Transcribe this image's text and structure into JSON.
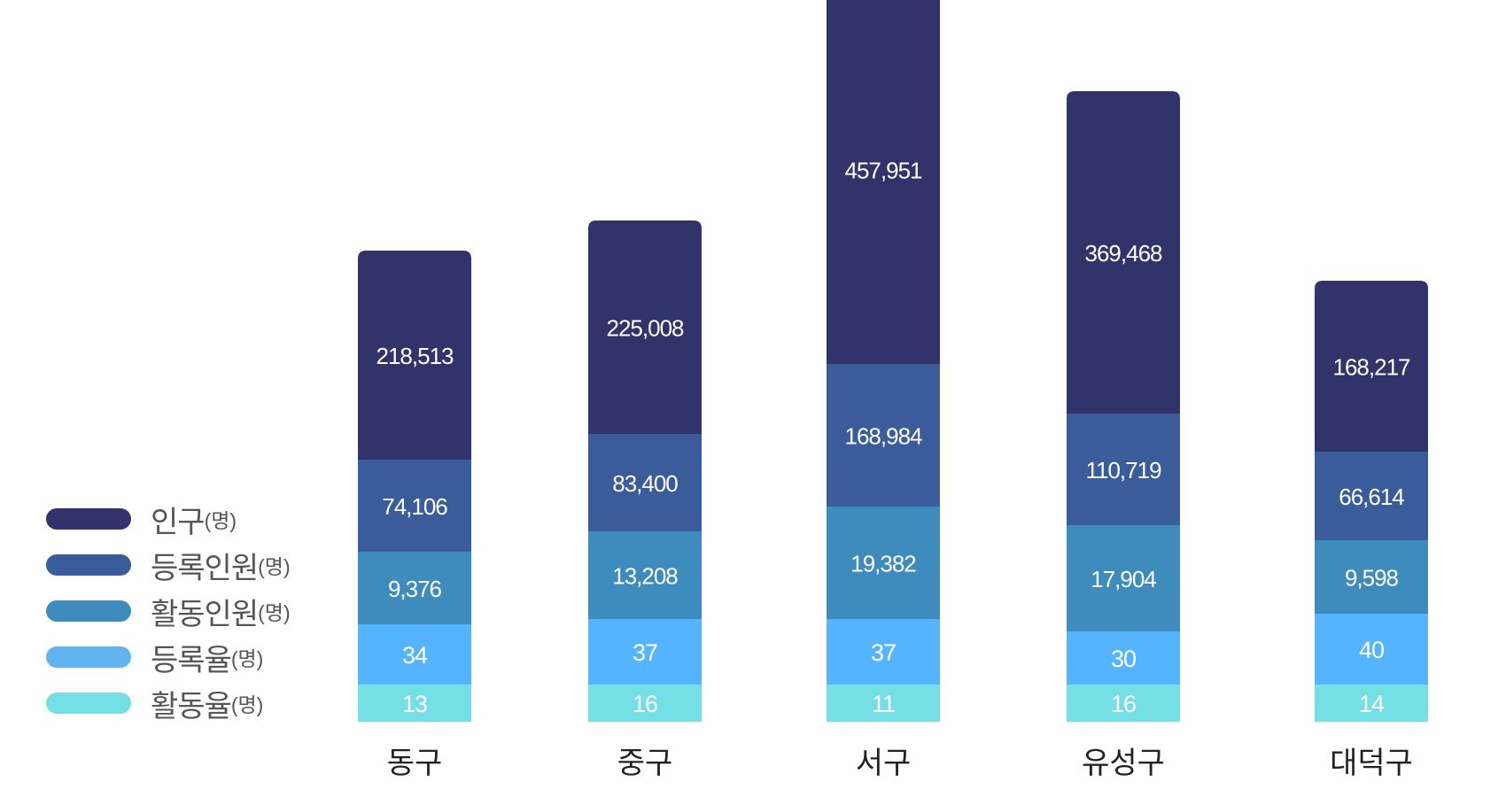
{
  "chart_data": {
    "type": "bar",
    "stacked": true,
    "categories": [
      "동구",
      "중구",
      "서구",
      "유성구",
      "대덕구"
    ],
    "series": [
      {
        "name": "인구",
        "unit": "(명)",
        "color": "#33336b",
        "values": [
          218513,
          225008,
          457951,
          369468,
          168217
        ]
      },
      {
        "name": "등록인원",
        "unit": "(명)",
        "color": "#3a5c9a",
        "values": [
          74106,
          83400,
          168984,
          110719,
          66614
        ]
      },
      {
        "name": "활동인원",
        "unit": "(명)",
        "color": "#3e8bbd",
        "values": [
          9376,
          13208,
          19382,
          17904,
          9598
        ]
      },
      {
        "name": "등록율",
        "unit": "(명)",
        "color": "#55b4ff",
        "values": [
          34,
          37,
          37,
          30,
          40
        ]
      },
      {
        "name": "활동율",
        "unit": "(명)",
        "color": "#75dfe6",
        "values": [
          13,
          16,
          11,
          16,
          14
        ]
      }
    ],
    "value_labels": [
      [
        "218,513",
        "225,008",
        "457,951",
        "369,468",
        "168,217"
      ],
      [
        "74,106",
        "83,400",
        "168,984",
        "110,719",
        "66,614"
      ],
      [
        "9,376",
        "13,208",
        "19,382",
        "17,904",
        "9,598"
      ],
      [
        "34",
        "37",
        "37",
        "30",
        "40"
      ],
      [
        "13",
        "16",
        "11",
        "16",
        "14"
      ]
    ],
    "legend_placement": "bottom-left",
    "grid": false
  }
}
